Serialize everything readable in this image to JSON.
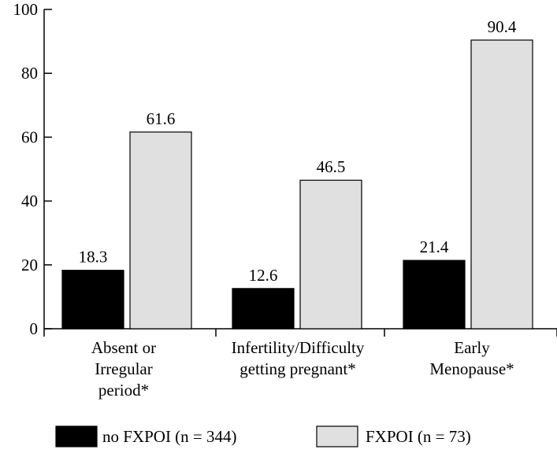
{
  "chart_data": {
    "type": "bar",
    "categories": [
      [
        "Absent or",
        "Irregular",
        "period*"
      ],
      [
        "Infertility/Difficulty",
        "getting pregnant*"
      ],
      [
        "Early",
        "Menopause*"
      ]
    ],
    "series": [
      {
        "name": "no FXPOI (n = 344)",
        "values": [
          18.3,
          12.6,
          21.4
        ],
        "value_labels": [
          "18.3",
          "12.6",
          "21.4"
        ],
        "color": "#000000"
      },
      {
        "name": "FXPOI (n = 73)",
        "values": [
          61.6,
          46.5,
          90.4
        ],
        "value_labels": [
          "61.6",
          "46.5",
          "90.4"
        ],
        "color": "#e0e0e0"
      }
    ],
    "ylim": [
      0,
      100
    ],
    "yticks": [
      0,
      20,
      40,
      60,
      80,
      100
    ],
    "ytick_labels": [
      "0",
      "20",
      "40",
      "60",
      "80",
      "100"
    ],
    "grid": false,
    "legend_position": "bottom"
  }
}
